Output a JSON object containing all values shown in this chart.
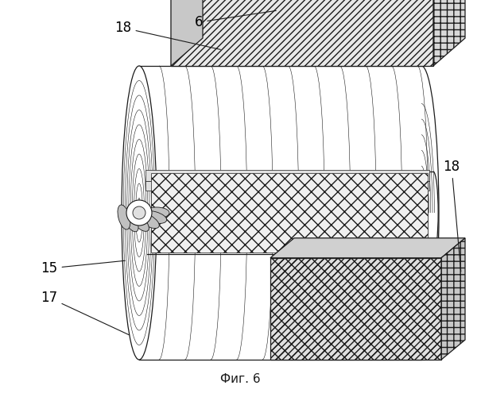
{
  "title": "Фиг. 6",
  "title_fontsize": 11,
  "background_color": "#ffffff",
  "fig_width": 6.05,
  "fig_height": 5.0,
  "dpi": 100,
  "black": "#1a1a1a",
  "gray_light": "#d8d8d8",
  "gray_mid": "#b8b8b8",
  "gray_dark": "#909090",
  "label_fontsize": 12,
  "lw_main": 0.9,
  "lw_thin": 0.5
}
